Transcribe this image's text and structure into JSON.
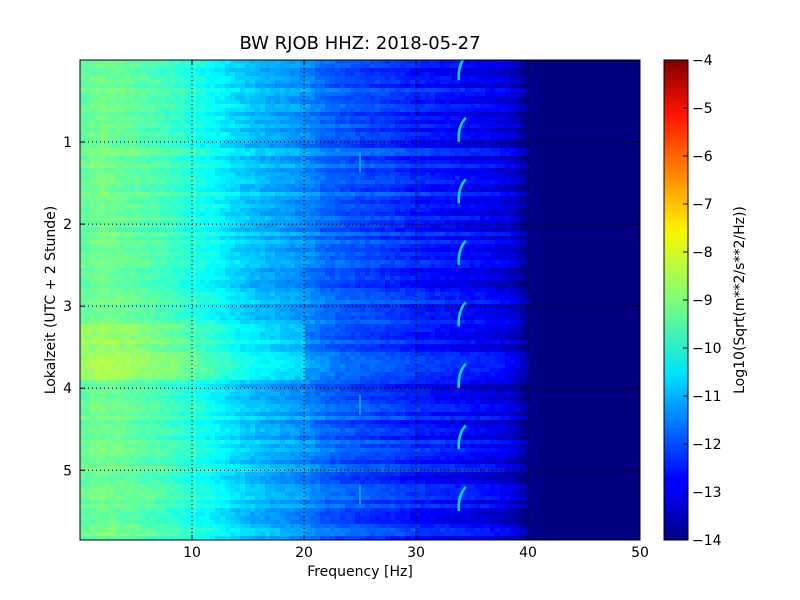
{
  "chart_data": {
    "type": "heatmap",
    "title": "BW RJOB HHZ: 2018-05-27",
    "xlabel": "Frequency [Hz]",
    "ylabel": "Lokalzeit (UTC + 2 Stunde)",
    "colorbar_label": "Log10(Sqrt(m**2/s**2/Hz))",
    "colormap": "jet",
    "xlim": [
      0,
      50
    ],
    "ylim": [
      0,
      5.85
    ],
    "y_inverted": true,
    "clim": [
      -14,
      -4
    ],
    "grid": true,
    "xticks": [
      10,
      20,
      30,
      40,
      50
    ],
    "yticks": [
      1,
      2,
      3,
      4,
      5
    ],
    "colorbar_ticks": [
      -4,
      -5,
      -6,
      -7,
      -8,
      -9,
      -10,
      -11,
      -12,
      -13,
      -14
    ],
    "spectrum_profile": {
      "frequency_hz": [
        0,
        2,
        5,
        8,
        10,
        12,
        14,
        16,
        18,
        20,
        22,
        25,
        28,
        30,
        33,
        36,
        38,
        39,
        40,
        42,
        45,
        50
      ],
      "log10_amplitude": [
        -9.3,
        -9.1,
        -9.3,
        -9.6,
        -9.9,
        -10.2,
        -10.6,
        -10.9,
        -11.1,
        -11.3,
        -11.7,
        -12.0,
        -12.2,
        -12.4,
        -12.6,
        -12.8,
        -13.0,
        -13.3,
        -13.9,
        -14.0,
        -14.0,
        -14.0
      ]
    },
    "daytime_noise_hours": [
      3.2,
      3.9
    ],
    "line_features": [
      {
        "frequency_hz": 34,
        "hours": [
          0.1,
          0.85,
          1.6,
          2.35,
          3.1,
          3.85,
          4.6,
          5.35
        ]
      },
      {
        "frequency_hz": 25,
        "hours": [
          1.25,
          4.2,
          5.3
        ]
      }
    ]
  }
}
